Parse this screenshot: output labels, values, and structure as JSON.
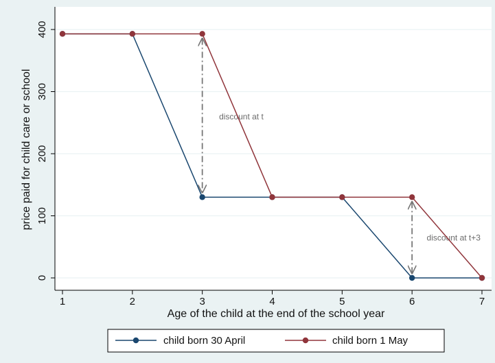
{
  "chart_data": {
    "type": "line",
    "xlabel": "Age of the child at the end of the school year",
    "ylabel": "price paid for child care or school",
    "x": [
      1,
      2,
      3,
      4,
      5,
      6,
      7
    ],
    "xticks": [
      "1",
      "2",
      "3",
      "4",
      "5",
      "6",
      "7"
    ],
    "yticks": [
      "0",
      "100",
      "200",
      "300",
      "400"
    ],
    "xlim": [
      1,
      7
    ],
    "ylim": [
      0,
      400
    ],
    "grid": "horizontal",
    "legend_position": "bottom",
    "series": [
      {
        "name": "child born 30 April",
        "color": "#1a476f",
        "values": [
          393,
          393,
          130,
          130,
          130,
          0,
          0
        ]
      },
      {
        "name": "child born 1 May",
        "color": "#90353b",
        "values": [
          393,
          393,
          393,
          130,
          130,
          130,
          0
        ]
      }
    ],
    "annotations": [
      {
        "text": "discount at t",
        "x": 3,
        "from": 393,
        "to": 130,
        "label_x": 3.24,
        "label_y": 255
      },
      {
        "text": "discount at t+3",
        "x": 6,
        "from": 130,
        "to": 0,
        "label_x": 6.21,
        "label_y": 60
      }
    ]
  }
}
